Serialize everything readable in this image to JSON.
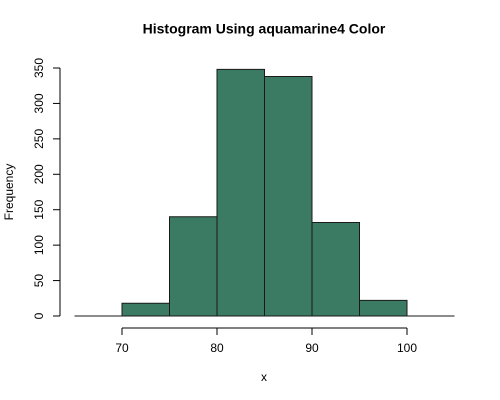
{
  "chart_data": {
    "type": "histogram",
    "title": "Histogram Using aquamarine4 Color",
    "x_label": "x",
    "y_label": "Frequency",
    "bins": [
      65,
      70,
      75,
      80,
      85,
      90,
      95,
      100,
      105
    ],
    "values": [
      0,
      18,
      140,
      348,
      338,
      132,
      22,
      0
    ],
    "color": "#3b7a63",
    "xlim": [
      65,
      105
    ],
    "xticks": [
      70,
      80,
      90,
      100
    ],
    "ylim": [
      0,
      350
    ],
    "yticks": [
      0,
      50,
      100,
      150,
      200,
      250,
      300,
      350
    ]
  }
}
